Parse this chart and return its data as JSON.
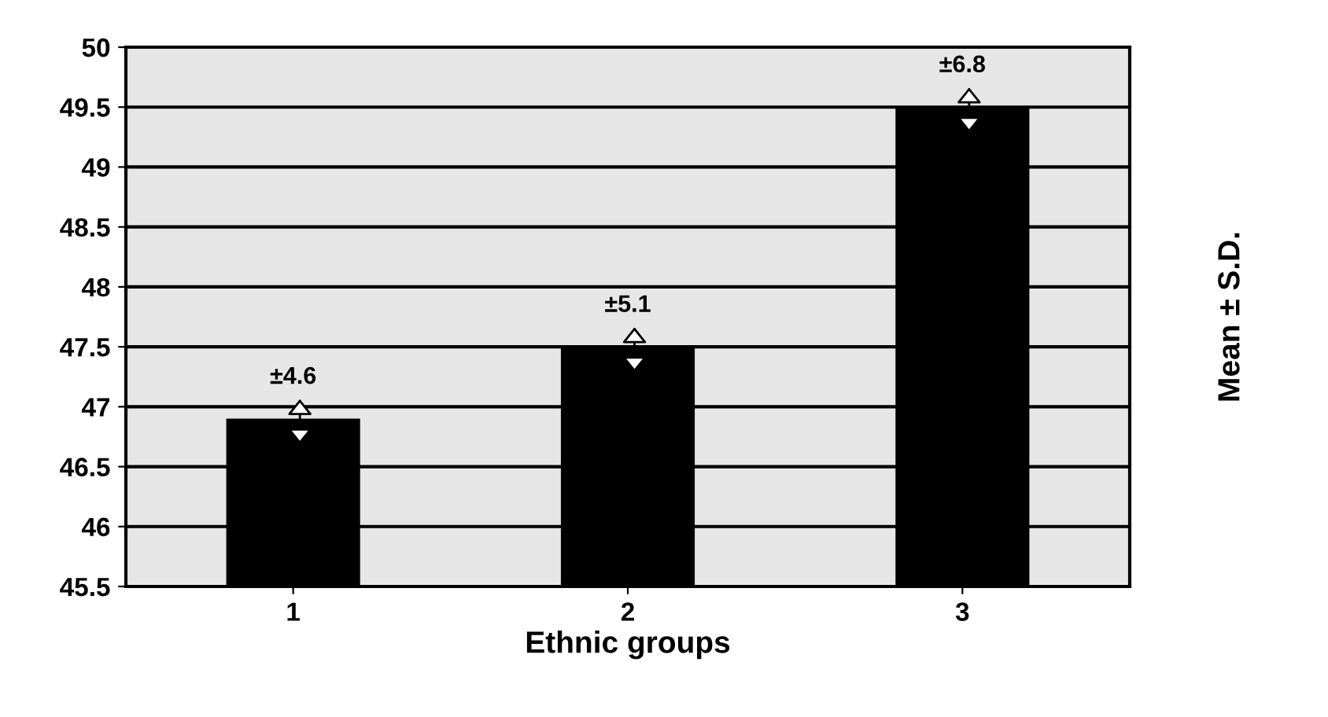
{
  "chart_data": {
    "type": "bar",
    "xlabel": "Ethnic groups",
    "ylabel": "Mean ± S.D.",
    "categories": [
      "1",
      "2",
      "3"
    ],
    "series": [
      {
        "color": "#000000",
        "values": [
          46.9,
          47.5,
          49.5
        ]
      }
    ],
    "annotations": [
      {
        "text": "±4.6",
        "x": "1",
        "y": 46.9
      },
      {
        "text": "±5.1",
        "x": "2",
        "y": 47.5
      },
      {
        "text": "±6.8",
        "x": "3",
        "y": 49.5
      }
    ],
    "ylim": [
      45.5,
      50
    ],
    "yticks": [
      45.5,
      46,
      46.5,
      47,
      47.5,
      48,
      48.5,
      49,
      49.5,
      50
    ],
    "grid": "y",
    "legend": false
  }
}
